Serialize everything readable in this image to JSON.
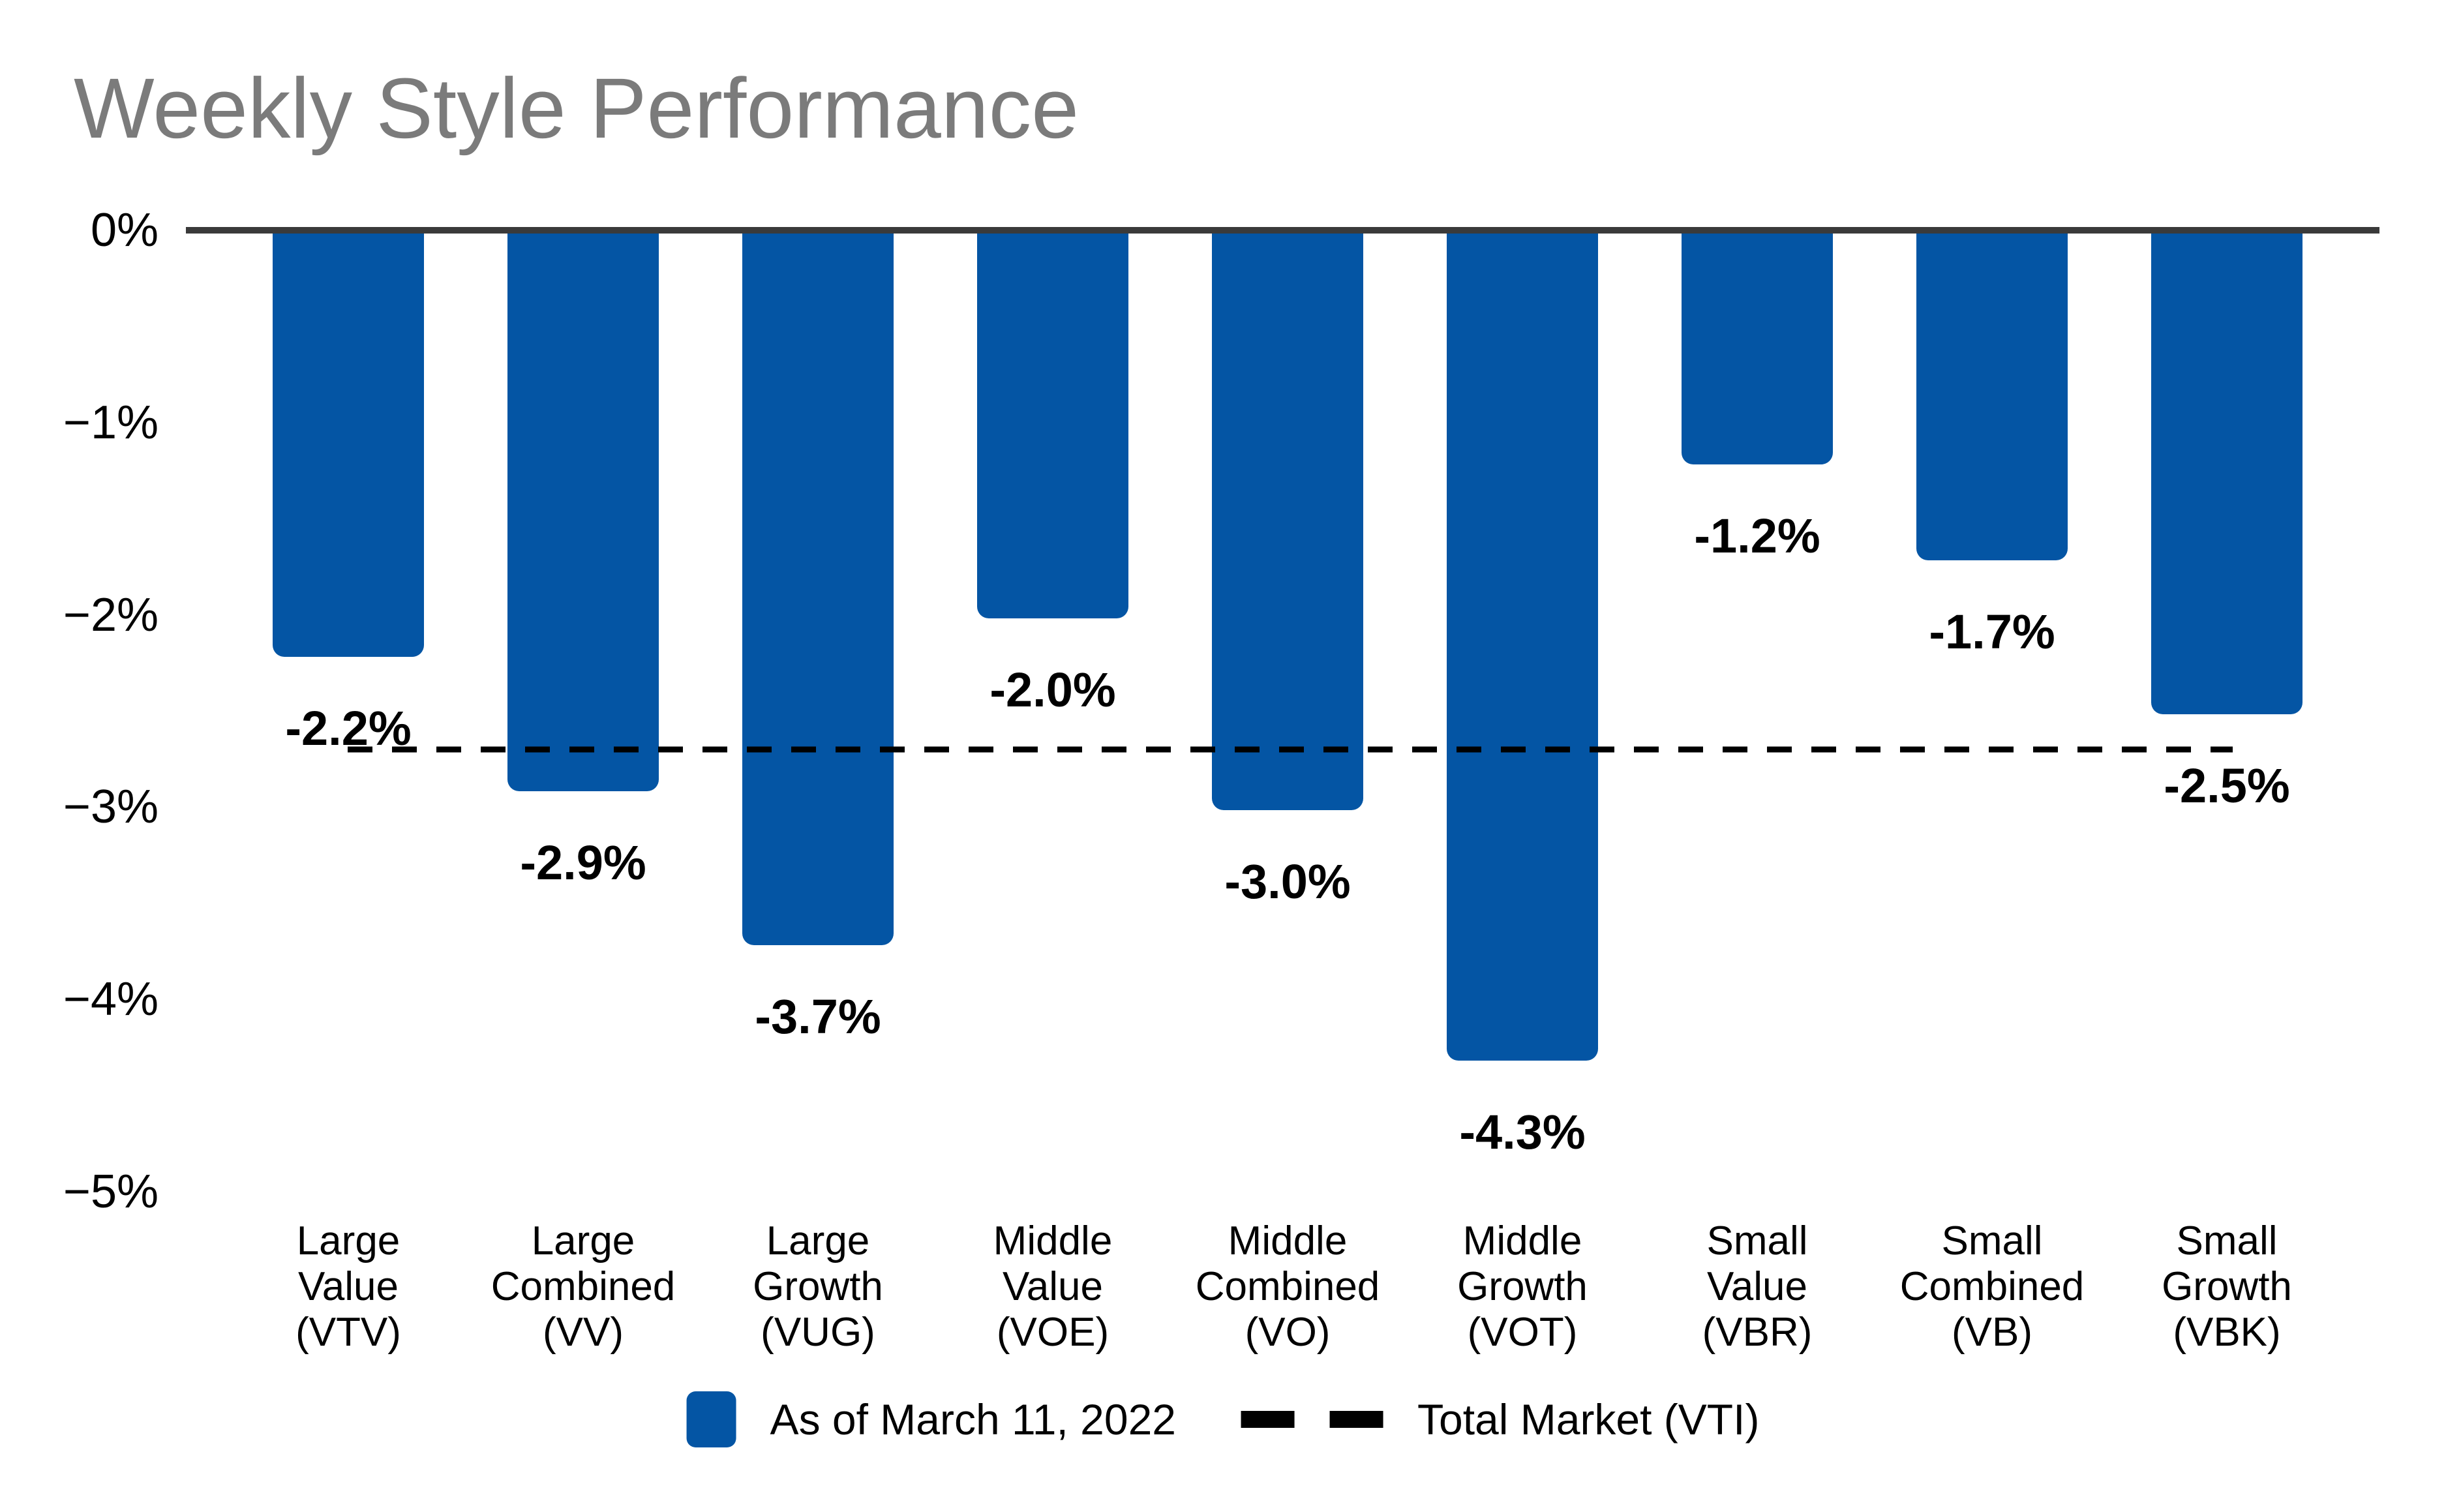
{
  "page": {
    "background": "#ffffff"
  },
  "colors": {
    "bar": "#0455A4",
    "title": "#7B7B7B",
    "axis": "#3A3A3A",
    "reference_line": "#000000",
    "text": "#000000"
  },
  "chart_data": {
    "type": "bar",
    "title": "Weekly Style Performance",
    "xlabel": "",
    "ylabel": "",
    "ylim": [
      -5,
      0
    ],
    "grid": false,
    "y_ticks": [
      {
        "label": "0%",
        "value": 0
      },
      {
        "label": "−1%",
        "value": -1
      },
      {
        "label": "−2%",
        "value": -2
      },
      {
        "label": "−3%",
        "value": -3
      },
      {
        "label": "−4%",
        "value": -4
      },
      {
        "label": "−5%",
        "value": -5
      }
    ],
    "categories": [
      [
        "Large",
        "Value",
        "(VTV)"
      ],
      [
        "Large",
        "Combined",
        "(VV)"
      ],
      [
        "Large",
        "Growth",
        "(VUG)"
      ],
      [
        "Middle",
        "Value",
        "(VOE)"
      ],
      [
        "Middle",
        "Combined",
        "(VO)"
      ],
      [
        "Middle",
        "Growth",
        "(VOT)"
      ],
      [
        "Small",
        "Value",
        "(VBR)"
      ],
      [
        "Small",
        "Combined",
        "(VB)"
      ],
      [
        "Small",
        "Growth",
        "(VBK)"
      ]
    ],
    "values": [
      -2.2,
      -2.9,
      -3.7,
      -2.0,
      -3.0,
      -4.3,
      -1.2,
      -1.7,
      -2.5
    ],
    "bar_labels": [
      "-2.2%",
      "-2.9%",
      "-3.7%",
      "-2.0%",
      "-3.0%",
      "-4.3%",
      "-1.2%",
      "-1.7%",
      "-2.5%"
    ],
    "reference_line": {
      "label": "Total Market (VTI)",
      "value": -2.7,
      "style": "dashed"
    },
    "legend": {
      "position": "bottom",
      "items": [
        {
          "label": "As of March 11, 2022",
          "marker": "square"
        },
        {
          "label": "Total Market (VTI)",
          "marker": "dashed-line"
        }
      ]
    }
  }
}
